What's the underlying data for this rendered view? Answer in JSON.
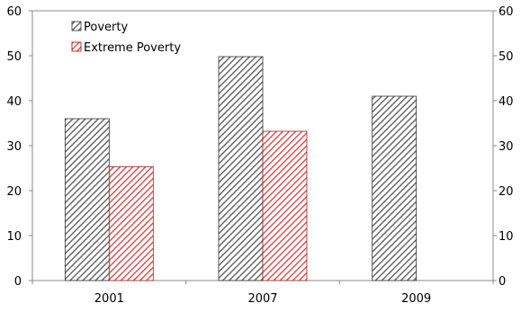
{
  "chart_data": {
    "type": "bar",
    "categories": [
      "2001",
      "2007",
      "2009"
    ],
    "series": [
      {
        "name": "Poverty",
        "values": [
          36,
          49.8,
          41
        ],
        "color": "#555555"
      },
      {
        "name": "Extreme Poverty",
        "values": [
          25.3,
          33.2,
          null
        ],
        "color": "#e03a3a"
      }
    ],
    "ylim": [
      0,
      60
    ],
    "yticks": [
      0,
      10,
      20,
      30,
      40,
      50,
      60
    ],
    "secondary_yticks": [
      0,
      10,
      20,
      30,
      40,
      50,
      60
    ],
    "legend_position": "top-left",
    "grid": false
  }
}
